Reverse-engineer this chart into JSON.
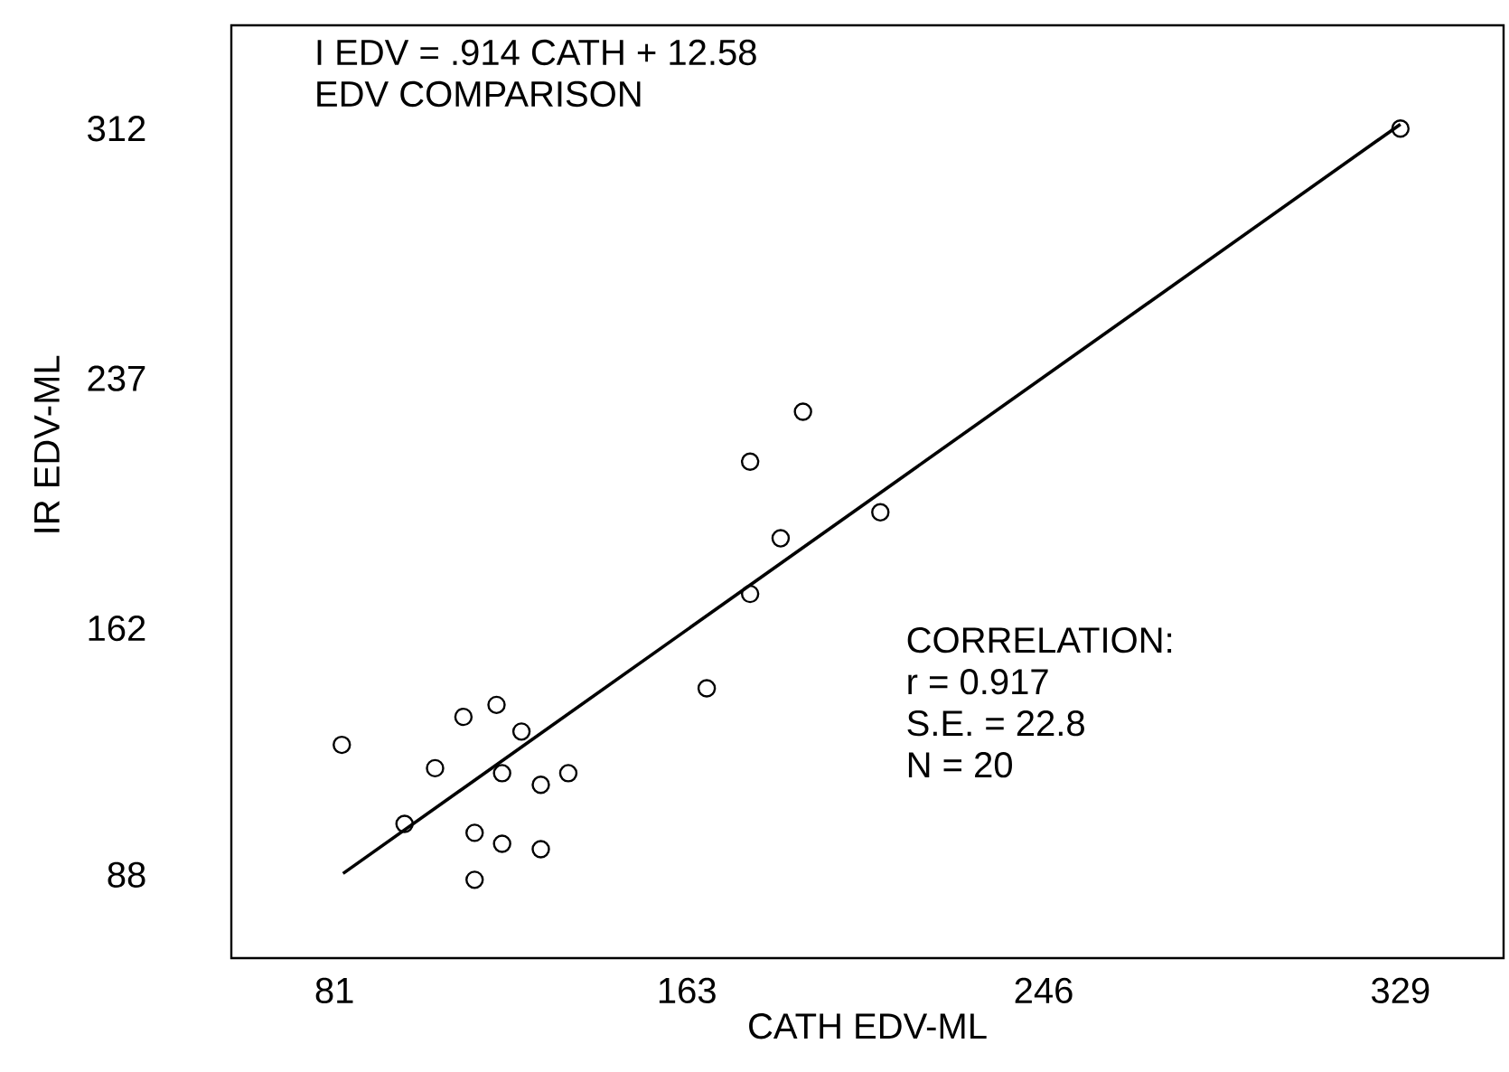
{
  "chart_data": {
    "type": "scatter",
    "title": "I EDV = .914 CATH + 12.58",
    "subtitle": "EDV COMPARISON",
    "xlabel": "CATH EDV-ML",
    "ylabel": "IR EDV-ML",
    "annotations": [
      "CORRELATION:",
      "r = 0.917",
      "S.E. = 22.8",
      "N = 20"
    ],
    "xlim": [
      57,
      353
    ],
    "ylim": [
      63,
      343
    ],
    "xticks": [
      81,
      163,
      246,
      329
    ],
    "yticks": [
      88,
      162,
      237,
      312
    ],
    "grid": false,
    "marker": "circle",
    "series": [
      {
        "color": "#000000",
        "x": [
          82.7,
          97.3,
          104.4,
          111,
          118.7,
          124.5,
          120,
          129,
          135.4,
          113.6,
          120,
          129,
          113.6,
          167.6,
          177.7,
          184.8,
          177.7,
          190,
          208,
          329
        ],
        "values": [
          127,
          103.3,
          120,
          135.4,
          139,
          131,
          118.5,
          115,
          118.5,
          100.6,
          97.3,
          95.7,
          86.5,
          144,
          172.3,
          189,
          212,
          227,
          196.8,
          312
        ]
      },
      {
        "type": "line",
        "color": "#000000",
        "marker": "none",
        "line_style": "solid",
        "x": [
          83,
          329
        ],
        "values": [
          88.4,
          313.3
        ]
      }
    ]
  }
}
